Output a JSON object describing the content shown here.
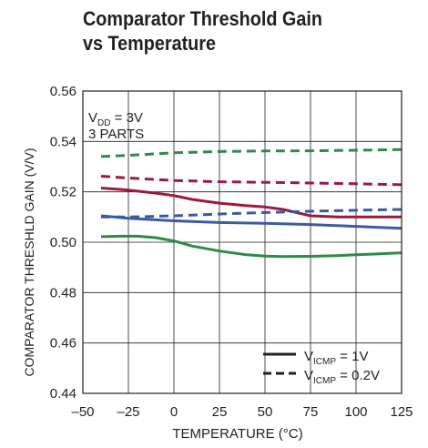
{
  "chart_data": {
    "type": "line",
    "title_lines": [
      "Comparator Threshold Gain",
      "vs Temperature"
    ],
    "xlabel": "TEMPERATURE (°C)",
    "ylabel": "COMPARATOR THRESHLD GAIN (V/V)",
    "xlim": [
      -50,
      125
    ],
    "ylim": [
      0.44,
      0.56
    ],
    "x_ticks": [
      "–50",
      "–25",
      "0",
      "25",
      "50",
      "75",
      "100",
      "125"
    ],
    "y_ticks": [
      "0.44",
      "0.46",
      "0.48",
      "0.50",
      "0.52",
      "0.54",
      "0.56"
    ],
    "grid": true,
    "annotation": {
      "line1_main": "V",
      "line1_sub": "DD",
      "line1_rest": " = 3V",
      "line2": "3 PARTS"
    },
    "legend": {
      "position": "bottom-right",
      "entries": [
        {
          "style": "solid",
          "main": "V",
          "sub": "ICMP",
          "rest": " = 1V"
        },
        {
          "style": "dashed",
          "main": "V",
          "sub": "ICMP",
          "rest": " = 0.2V"
        }
      ]
    },
    "colors": {
      "red": "#9b1b3b",
      "blue": "#3b5aa3",
      "green": "#2e8b45",
      "ink": "#231f20"
    },
    "series": [
      {
        "color": "red",
        "style": "solid",
        "x": [
          -40,
          -25,
          -10,
          0,
          10,
          25,
          40,
          50,
          60,
          75,
          90,
          100,
          110,
          125
        ],
        "y": [
          0.5215,
          0.5207,
          0.5195,
          0.5185,
          0.517,
          0.5155,
          0.5145,
          0.514,
          0.513,
          0.5105,
          0.51,
          0.51,
          0.51,
          0.51
        ]
      },
      {
        "color": "red",
        "style": "dashed",
        "x": [
          -40,
          -25,
          0,
          25,
          50,
          75,
          100,
          125
        ],
        "y": [
          0.5262,
          0.5255,
          0.5245,
          0.524,
          0.5238,
          0.5235,
          0.5232,
          0.5228
        ]
      },
      {
        "color": "blue",
        "style": "solid",
        "x": [
          -40,
          -25,
          0,
          25,
          50,
          75,
          100,
          125
        ],
        "y": [
          0.5105,
          0.5095,
          0.5085,
          0.5078,
          0.5075,
          0.507,
          0.5063,
          0.5055
        ]
      },
      {
        "color": "blue",
        "style": "dashed",
        "x": [
          -40,
          -25,
          0,
          25,
          50,
          75,
          100,
          125
        ],
        "y": [
          0.51,
          0.51,
          0.5105,
          0.5112,
          0.5118,
          0.5123,
          0.5127,
          0.513
        ]
      },
      {
        "color": "green",
        "style": "solid",
        "x": [
          -40,
          -30,
          -20,
          -10,
          0,
          10,
          25,
          40,
          50,
          60,
          75,
          90,
          100,
          110,
          125
        ],
        "y": [
          0.5022,
          0.5024,
          0.5024,
          0.5018,
          0.5005,
          0.4985,
          0.4965,
          0.495,
          0.4945,
          0.4943,
          0.4944,
          0.4947,
          0.495,
          0.4953,
          0.4958
        ]
      },
      {
        "color": "green",
        "style": "dashed",
        "x": [
          -40,
          -25,
          0,
          25,
          50,
          75,
          100,
          125
        ],
        "y": [
          0.534,
          0.5345,
          0.5355,
          0.536,
          0.5362,
          0.5363,
          0.5365,
          0.5368
        ]
      }
    ]
  }
}
